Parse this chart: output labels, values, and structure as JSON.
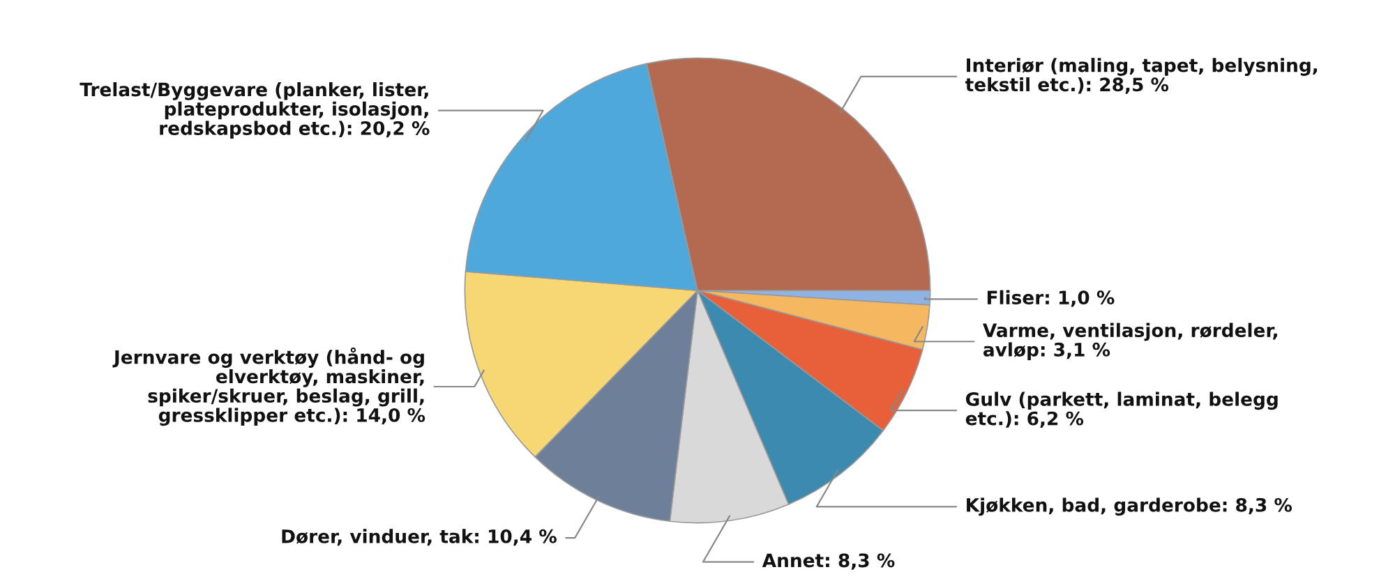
{
  "chart_data": {
    "type": "pie",
    "categories": [
      "Fliser",
      "Varme, ventilasjon, rørdeler,\navløp",
      "Gulv (parkett, laminat, belegg\netc.)",
      "Kjøkken, bad, garderobe",
      "Annet",
      "Dører, vinduer, tak",
      "Jernvare og verktøy (hånd- og\nelverktøy, maskiner,\nspiker/skruer, beslag, grill,\ngressklipper etc.)",
      "Trelast/Byggevare (planker, lister,\nplateprodukter, isolasjon,\nredskapsbod etc.)",
      "Interiør (maling, tapet, belysning,\ntekstil etc.)"
    ],
    "values": [
      1.0,
      3.1,
      6.2,
      8.3,
      8.3,
      10.4,
      14.0,
      20.2,
      28.5
    ],
    "value_labels": [
      "1,0 %",
      "3,1 %",
      "6,2 %",
      "8,3 %",
      "8,3 %",
      "10,4 %",
      "14,0 %",
      "20,2 %",
      "28,5 %"
    ],
    "colors": [
      "#8fb4e3",
      "#f5b860",
      "#e8603a",
      "#3c8ab0",
      "#d9d9d9",
      "#6e7f99",
      "#f7d774",
      "#4fa8dc",
      "#b46a50"
    ]
  }
}
